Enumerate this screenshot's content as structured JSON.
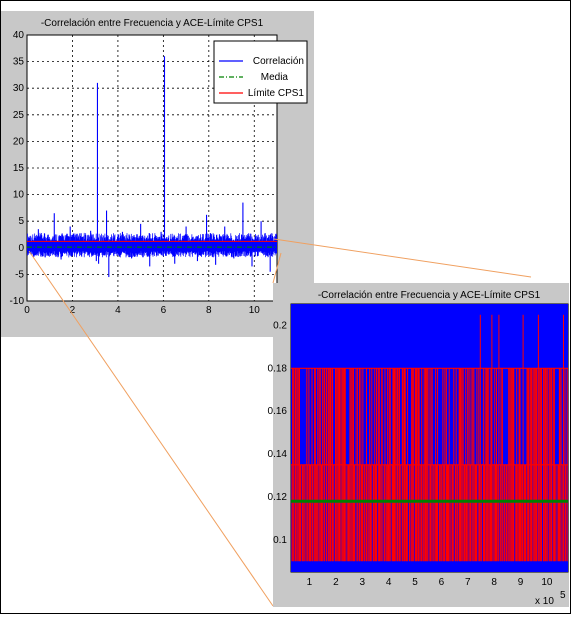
{
  "colors": {
    "correlation": "#0000ff",
    "mean": "#008000",
    "limit": "#ff0000",
    "connector": "#f0a060",
    "figure_bg": "#c8c8c8"
  },
  "chart_data": [
    {
      "type": "line",
      "title": "-Correlación entre Frecuencia y ACE-Límite CPS1",
      "xlim": [
        0,
        11
      ],
      "ylim": [
        -10,
        40
      ],
      "x_ticks": [
        0,
        2,
        4,
        6,
        8,
        10
      ],
      "y_ticks": [
        -10,
        -5,
        0,
        5,
        10,
        15,
        20,
        25,
        30,
        35,
        40
      ],
      "grid": true,
      "legend_location": "top-right",
      "legend": [
        "Correlación",
        "Media",
        "Límite CPS1"
      ],
      "series": [
        {
          "name": "Correlación",
          "style": "solid",
          "x": [
            0,
            0.5,
            0.8,
            1.2,
            1.5,
            1.9,
            2.4,
            2.8,
            3.05,
            3.1,
            3.15,
            3.5,
            3.6,
            4.2,
            4.6,
            5.0,
            5.4,
            5.9,
            6.05,
            6.1,
            6.15,
            6.5,
            7.0,
            7.5,
            7.9,
            8.3,
            8.7,
            9.1,
            9.5,
            9.9,
            10.3,
            10.7,
            11.0
          ],
          "y": [
            1.2,
            3.5,
            -1.8,
            6.5,
            -2.2,
            4.0,
            -1.0,
            3.2,
            -2.5,
            31.0,
            -3.0,
            7.0,
            -5.5,
            3.0,
            -2.0,
            4.5,
            -3.5,
            3.0,
            36.0,
            -1.5,
            2.0,
            -3.0,
            4.0,
            -2.5,
            6.2,
            -3.2,
            4.0,
            -2.0,
            8.5,
            -3.5,
            5.0,
            -4.5,
            2.0
          ]
        },
        {
          "name": "Media",
          "style": "dash-dot",
          "x": [
            0,
            11
          ],
          "y": [
            0.12,
            0.12
          ]
        },
        {
          "name": "Límite CPS1",
          "style": "solid",
          "x": [
            0,
            11
          ],
          "y": [
            1.2,
            1.2
          ]
        }
      ]
    },
    {
      "type": "line",
      "title": "-Correlación entre Frecuencia y ACE-Límite CPS1",
      "xlim": [
        0.3,
        10.8
      ],
      "ylim": [
        0.085,
        0.21
      ],
      "x_ticks": [
        1,
        2,
        3,
        4,
        5,
        6,
        7,
        8,
        9,
        10
      ],
      "y_ticks": [
        0.1,
        0.12,
        0.14,
        0.16,
        0.18,
        0.2
      ],
      "x_exponent_label": "x 10",
      "x_exponent_power": "5",
      "grid": false,
      "series": [
        {
          "name": "Correlación",
          "style": "filled-band",
          "x": [
            0.3,
            10.8
          ],
          "y": [
            0.085,
            0.21
          ]
        },
        {
          "name": "Media",
          "style": "solid",
          "x": [
            0.3,
            10.8
          ],
          "y": [
            0.118,
            0.118
          ]
        },
        {
          "name": "Límite CPS1",
          "style": "stepped",
          "levels": [
            0.09,
            0.135,
            0.18,
            0.205
          ]
        }
      ]
    }
  ]
}
